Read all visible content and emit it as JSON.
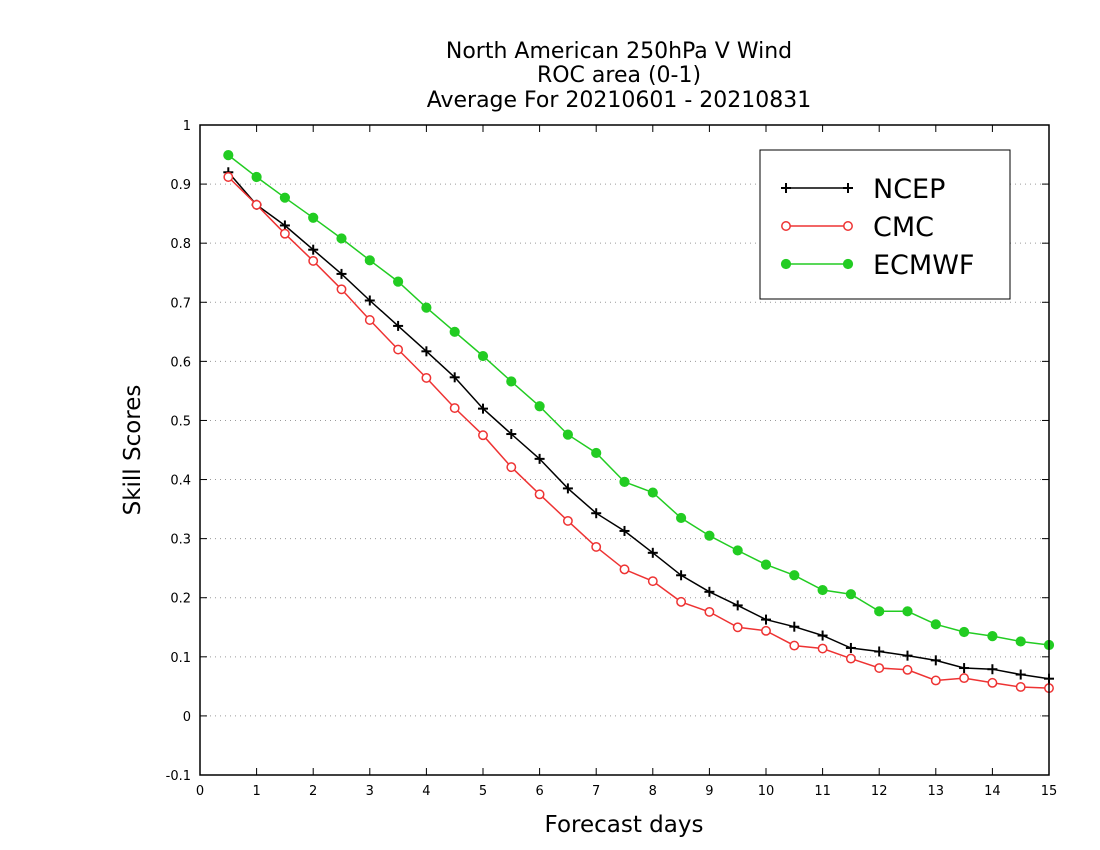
{
  "chart_data": {
    "type": "line",
    "title_lines": [
      "North American 250hPa V Wind",
      "ROC area (0-1)",
      "Average For 20210601 - 20210831"
    ],
    "xlabel": "Forecast days",
    "ylabel": "Skill Scores",
    "xlim": [
      0,
      15
    ],
    "ylim": [
      -0.1,
      1
    ],
    "x_ticks": [
      0,
      1,
      2,
      3,
      4,
      5,
      6,
      7,
      8,
      9,
      10,
      11,
      12,
      13,
      14,
      15
    ],
    "x_tick_labels": [
      "0",
      "1",
      "2",
      "3",
      "4",
      "5",
      "6",
      "7",
      "8",
      "9",
      "10",
      "11",
      "12",
      "13",
      "14",
      "15"
    ],
    "y_ticks": [
      -0.1,
      0,
      0.1,
      0.2,
      0.3,
      0.4,
      0.5,
      0.6,
      0.7,
      0.8,
      0.9,
      1
    ],
    "y_tick_labels": [
      "-0.1",
      "0",
      "0.1",
      "0.2",
      "0.3",
      "0.4",
      "0.5",
      "0.6",
      "0.7",
      "0.8",
      "0.9",
      "1"
    ],
    "grid": "horizontal dotted",
    "legend_position": "top-right",
    "x": [
      0.5,
      1,
      1.5,
      2,
      2.5,
      3,
      3.5,
      4,
      4.5,
      5,
      5.5,
      6,
      6.5,
      7,
      7.5,
      8,
      8.5,
      9,
      9.5,
      10,
      10.5,
      11,
      11.5,
      12,
      12.5,
      13,
      13.5,
      14,
      14.5,
      15
    ],
    "series": [
      {
        "name": "NCEP",
        "color": "#000000",
        "marker": "plus",
        "values": [
          0.92,
          0.865,
          0.83,
          0.789,
          0.748,
          0.703,
          0.66,
          0.617,
          0.573,
          0.52,
          0.477,
          0.435,
          0.385,
          0.343,
          0.313,
          0.276,
          0.238,
          0.21,
          0.187,
          0.163,
          0.151,
          0.136,
          0.115,
          0.109,
          0.102,
          0.094,
          0.081,
          0.079,
          0.07,
          0.063
        ]
      },
      {
        "name": "CMC",
        "color": "#ee3333",
        "marker": "open-circle",
        "values": [
          0.912,
          0.865,
          0.816,
          0.77,
          0.722,
          0.67,
          0.62,
          0.572,
          0.521,
          0.475,
          0.421,
          0.375,
          0.33,
          0.286,
          0.248,
          0.228,
          0.193,
          0.176,
          0.15,
          0.144,
          0.119,
          0.114,
          0.097,
          0.081,
          0.078,
          0.06,
          0.064,
          0.056,
          0.049,
          0.047
        ]
      },
      {
        "name": "ECMWF",
        "color": "#22cc22",
        "marker": "filled-circle",
        "values": [
          0.949,
          0.912,
          0.877,
          0.843,
          0.808,
          0.771,
          0.735,
          0.691,
          0.65,
          0.609,
          0.566,
          0.524,
          0.476,
          0.445,
          0.396,
          0.378,
          0.335,
          0.305,
          0.28,
          0.256,
          0.238,
          0.213,
          0.206,
          0.177,
          0.177,
          0.155,
          0.142,
          0.135,
          0.126,
          0.12
        ]
      }
    ]
  }
}
